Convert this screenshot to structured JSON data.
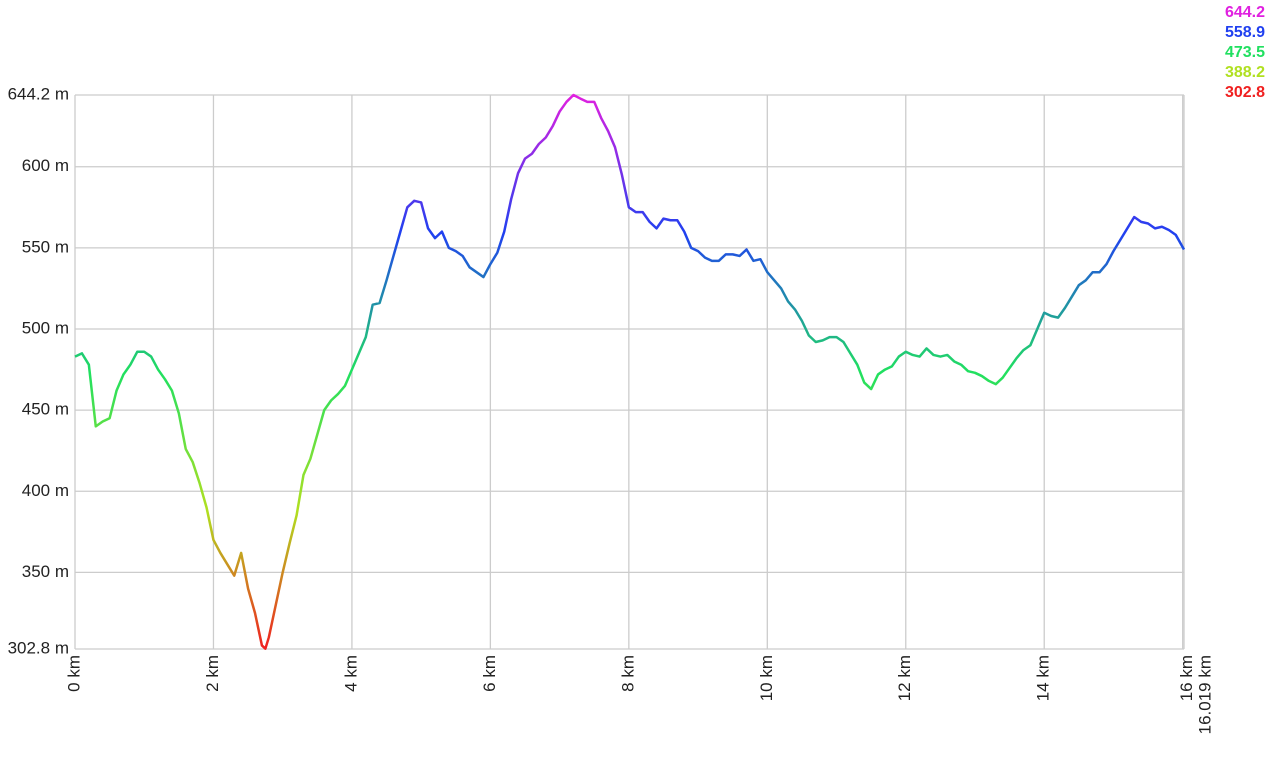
{
  "chart_data": {
    "type": "line",
    "xlim": [
      0,
      16.019
    ],
    "ylim": [
      302.8,
      644.2
    ],
    "grid": true,
    "xticks": [
      {
        "value": 0,
        "label": "0 km"
      },
      {
        "value": 2,
        "label": "2 km"
      },
      {
        "value": 4,
        "label": "4 km"
      },
      {
        "value": 6,
        "label": "6 km"
      },
      {
        "value": 8,
        "label": "8 km"
      },
      {
        "value": 10,
        "label": "10 km"
      },
      {
        "value": 12,
        "label": "12 km"
      },
      {
        "value": 14,
        "label": "14 km"
      },
      {
        "value": 16,
        "label": "16 km"
      },
      {
        "value": 16.019,
        "label": "16.019 km"
      }
    ],
    "yticks": [
      {
        "value": 302.8,
        "label": "302.8 m"
      },
      {
        "value": 350,
        "label": "350 m"
      },
      {
        "value": 400,
        "label": "400 m"
      },
      {
        "value": 450,
        "label": "450 m"
      },
      {
        "value": 500,
        "label": "500 m"
      },
      {
        "value": 550,
        "label": "550 m"
      },
      {
        "value": 600,
        "label": "600 m"
      },
      {
        "value": 644.2,
        "label": "644.2 m"
      }
    ],
    "color_scale": {
      "values": [
        644.2,
        558.9,
        473.5,
        388.2,
        302.8
      ],
      "colors": [
        "#e020e0",
        "#2040f0",
        "#20e060",
        "#b0e020",
        "#f02020"
      ]
    },
    "x": [
      0,
      0.1,
      0.2,
      0.3,
      0.4,
      0.5,
      0.6,
      0.7,
      0.8,
      0.9,
      1.0,
      1.1,
      1.2,
      1.3,
      1.4,
      1.5,
      1.6,
      1.7,
      1.8,
      1.9,
      2.0,
      2.1,
      2.2,
      2.3,
      2.4,
      2.5,
      2.6,
      2.7,
      2.75,
      2.8,
      2.9,
      3.0,
      3.1,
      3.2,
      3.3,
      3.4,
      3.5,
      3.6,
      3.7,
      3.8,
      3.9,
      4.0,
      4.1,
      4.2,
      4.3,
      4.4,
      4.5,
      4.6,
      4.7,
      4.8,
      4.9,
      5.0,
      5.1,
      5.2,
      5.3,
      5.4,
      5.5,
      5.6,
      5.7,
      5.8,
      5.9,
      6.0,
      6.1,
      6.2,
      6.3,
      6.4,
      6.5,
      6.6,
      6.7,
      6.8,
      6.9,
      7.0,
      7.1,
      7.2,
      7.3,
      7.4,
      7.5,
      7.6,
      7.7,
      7.8,
      7.9,
      8.0,
      8.1,
      8.2,
      8.3,
      8.4,
      8.5,
      8.6,
      8.7,
      8.8,
      8.9,
      9.0,
      9.1,
      9.2,
      9.3,
      9.4,
      9.5,
      9.6,
      9.7,
      9.8,
      9.9,
      10.0,
      10.1,
      10.2,
      10.3,
      10.4,
      10.5,
      10.6,
      10.7,
      10.8,
      10.9,
      11.0,
      11.1,
      11.2,
      11.3,
      11.4,
      11.5,
      11.6,
      11.7,
      11.8,
      11.9,
      12.0,
      12.1,
      12.2,
      12.3,
      12.4,
      12.5,
      12.6,
      12.7,
      12.8,
      12.9,
      13.0,
      13.1,
      13.2,
      13.3,
      13.4,
      13.5,
      13.6,
      13.7,
      13.8,
      13.9,
      14.0,
      14.1,
      14.2,
      14.3,
      14.4,
      14.5,
      14.6,
      14.7,
      14.8,
      14.9,
      15.0,
      15.1,
      15.2,
      15.3,
      15.4,
      15.5,
      15.6,
      15.7,
      15.8,
      15.9,
      16.019
    ],
    "values": [
      483,
      485,
      478,
      440,
      443,
      445,
      462,
      472,
      478,
      486,
      486,
      483,
      475,
      469,
      462,
      448,
      426,
      418,
      405,
      390,
      370,
      362,
      355,
      348,
      362,
      340,
      325,
      305,
      303,
      310,
      330,
      350,
      368,
      385,
      410,
      420,
      435,
      450,
      456,
      460,
      465,
      475,
      485,
      495,
      515,
      516,
      530,
      545,
      560,
      575,
      579,
      578,
      562,
      556,
      560,
      550,
      548,
      545,
      538,
      535,
      532,
      540,
      547,
      560,
      580,
      596,
      605,
      608,
      614,
      618,
      625,
      634,
      640,
      644.2,
      642,
      640,
      640,
      630,
      622,
      612,
      595,
      575,
      572,
      572,
      566,
      562,
      568,
      567,
      567,
      560,
      550,
      548,
      544,
      542,
      542,
      546,
      546,
      545,
      549,
      542,
      543,
      535,
      530,
      525,
      517,
      512,
      505,
      496,
      492,
      493,
      495,
      495,
      492,
      485,
      478,
      467,
      463,
      472,
      475,
      477,
      483,
      486,
      484,
      483,
      488,
      484,
      483,
      484,
      480,
      478,
      474,
      473,
      471,
      468,
      466,
      470,
      476,
      482,
      487,
      490,
      500,
      510,
      508,
      507,
      513,
      520,
      527,
      530,
      535,
      535,
      540,
      548,
      555,
      562,
      569,
      566,
      565,
      562,
      563,
      561,
      558,
      549
    ]
  }
}
